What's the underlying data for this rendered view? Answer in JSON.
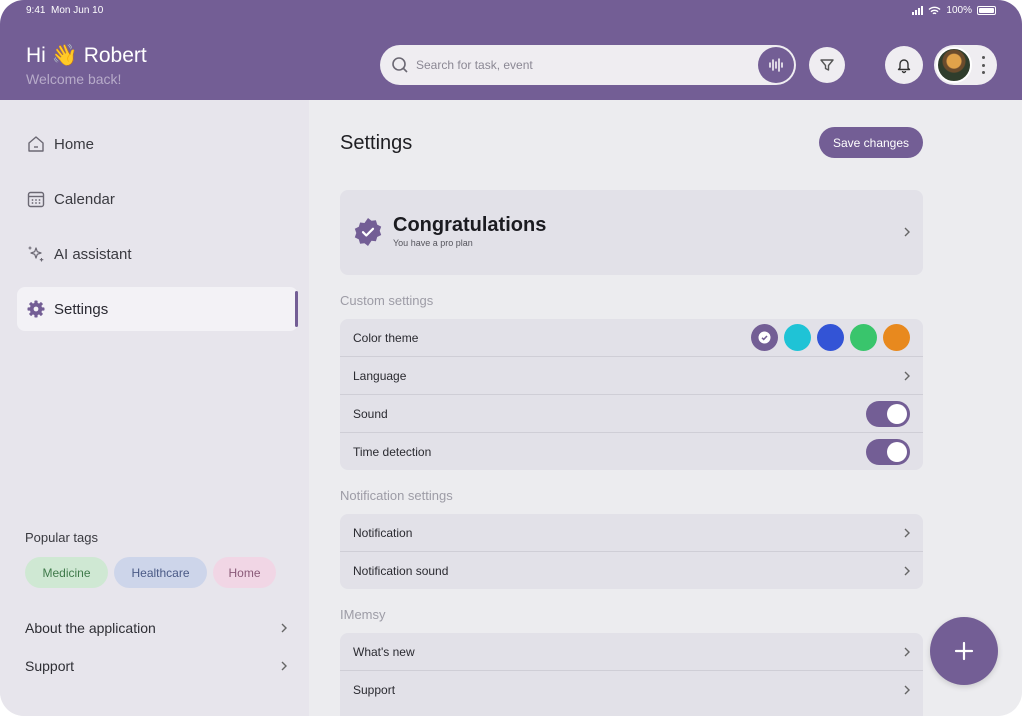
{
  "status_bar": {
    "time": "9:41",
    "date": "Mon Jun 10",
    "battery": "100%"
  },
  "header": {
    "greeting_hi": "Hi",
    "greeting_emoji": "👋",
    "user_name": "Robert",
    "welcome": "Welcome back!",
    "search_placeholder": "Search for task, event"
  },
  "sidebar": {
    "items": [
      {
        "label": "Home",
        "icon": "home-icon"
      },
      {
        "label": "Calendar",
        "icon": "calendar-icon"
      },
      {
        "label": "AI assistant",
        "icon": "sparkle-icon"
      },
      {
        "label": "Settings",
        "icon": "gear-icon",
        "active": true
      }
    ],
    "tags_title": "Popular tags",
    "tags": [
      {
        "label": "Medicine",
        "bg": "#cfe8d3",
        "fg": "#3f7a4a"
      },
      {
        "label": "Healthcare",
        "bg": "#cdd5ea",
        "fg": "#4a5a86"
      },
      {
        "label": "Home",
        "bg": "#f1d6e5",
        "fg": "#8a5a78"
      }
    ],
    "about": "About the application",
    "support": "Support"
  },
  "main": {
    "title": "Settings",
    "save_label": "Save changes",
    "pro": {
      "title": "Congratulations",
      "subtitle": "You have a pro plan"
    },
    "custom_title": "Custom settings",
    "custom_rows": {
      "color_theme": "Color theme",
      "language": "Language",
      "sound": "Sound",
      "time_detection": "Time detection"
    },
    "theme_colors": [
      "#735e95",
      "#1fc3d6",
      "#3354d6",
      "#39c56c",
      "#e8891e"
    ],
    "notification_title": "Notification settings",
    "notification_rows": {
      "notification": "Notification",
      "notification_sound": "Notification sound"
    },
    "app_title": "IMemsy",
    "app_rows": {
      "whats_new": "What's new",
      "support": "Support"
    }
  },
  "colors": {
    "accent": "#735e95"
  }
}
